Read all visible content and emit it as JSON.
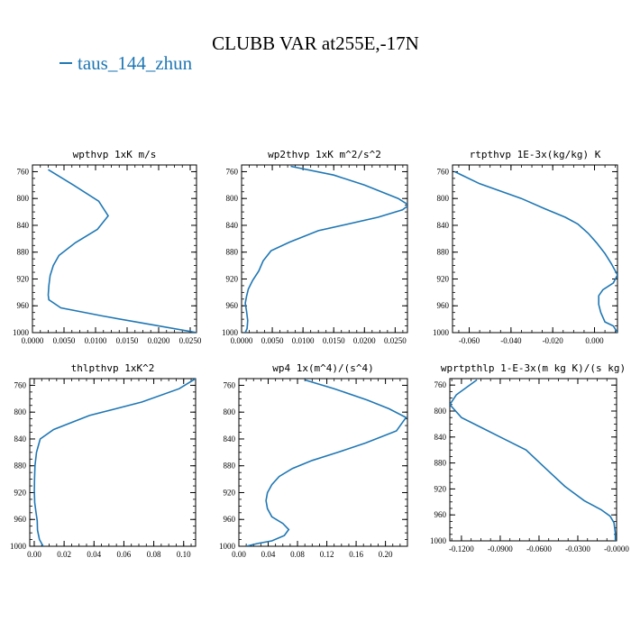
{
  "title": "CLUBB VAR at255E,-17N",
  "legend": {
    "label": "taus_144_zhun",
    "color": "#1f77b4"
  },
  "chart_data": [
    {
      "type": "line",
      "title": "wpthvp  1xK m/s",
      "xlim": [
        0,
        0.026
      ],
      "ylim": [
        1000,
        750
      ],
      "y_inverted": true,
      "xticks": [
        0,
        0.005,
        0.01,
        0.015,
        0.02,
        0.025
      ],
      "xtick_labels": [
        "0.0000",
        "0.0050",
        "0.0100",
        "0.0150",
        "0.0200",
        "0.0250"
      ],
      "yticks": [
        760,
        800,
        840,
        880,
        920,
        960,
        1000
      ],
      "series": [
        {
          "x": [
            0.0025,
            0.0065,
            0.0105,
            0.012,
            0.0103,
            0.0068,
            0.0042,
            0.0033,
            0.0028,
            0.0026,
            0.0025,
            0.0026,
            0.0045,
            0.011,
            0.0188,
            0.0261
          ],
          "y": [
            757,
            780,
            804,
            826,
            846,
            866,
            885,
            900,
            915,
            930,
            944,
            951,
            963,
            975,
            988,
            1000
          ]
        }
      ]
    },
    {
      "type": "line",
      "title": "wp2thvp  1xK m^2/s^2",
      "xlim": [
        0,
        0.027
      ],
      "ylim": [
        1000,
        750
      ],
      "y_inverted": true,
      "xticks": [
        0,
        0.005,
        0.01,
        0.015,
        0.02,
        0.025
      ],
      "xtick_labels": [
        "0.0000",
        "0.0050",
        "0.0100",
        "0.0150",
        "0.0200",
        "0.0250"
      ],
      "yticks": [
        760,
        800,
        840,
        880,
        920,
        960,
        1000
      ],
      "series": [
        {
          "x": [
            0.008,
            0.015,
            0.02,
            0.0255,
            0.0272,
            0.0262,
            0.0222,
            0.0125,
            0.0078,
            0.0048,
            0.0035,
            0.0028,
            0.0018,
            0.0011,
            0.0008,
            0.0006,
            0.0008,
            0.001,
            0.0009,
            0.0006
          ],
          "y": [
            752,
            765,
            780,
            800,
            810,
            817,
            828,
            848,
            865,
            878,
            893,
            908,
            922,
            935,
            946,
            956,
            968,
            982,
            994,
            1000
          ]
        }
      ]
    },
    {
      "type": "line",
      "title": "rtpthvp  1E-3x(kg/kg) K",
      "xlim": [
        -0.068,
        0.011
      ],
      "ylim": [
        1000,
        750
      ],
      "y_inverted": true,
      "xticks": [
        -0.06,
        -0.04,
        -0.02,
        0.0
      ],
      "xtick_labels": [
        "-0.060",
        "-0.040",
        "-0.020",
        "0.000"
      ],
      "yticks": [
        760,
        800,
        840,
        880,
        920,
        960,
        1000
      ],
      "series": [
        {
          "x": [
            -0.067,
            -0.055,
            -0.035,
            -0.024,
            -0.014,
            -0.008,
            -0.003,
            0.001,
            0.005,
            0.008,
            0.011,
            0.009,
            0.004,
            0.002,
            0.002,
            0.003,
            0.005,
            0.009,
            0.011
          ],
          "y": [
            760,
            778,
            800,
            815,
            828,
            838,
            852,
            866,
            882,
            897,
            914,
            926,
            936,
            945,
            958,
            970,
            984,
            990,
            1000
          ]
        }
      ]
    },
    {
      "type": "line",
      "title": "thlpthvp  1xK^2",
      "xlim": [
        -0.003,
        0.108
      ],
      "ylim": [
        1000,
        750
      ],
      "y_inverted": true,
      "xticks": [
        0.0,
        0.02,
        0.04,
        0.06,
        0.08,
        0.1
      ],
      "xtick_labels": [
        "0.00",
        "0.02",
        "0.04",
        "0.06",
        "0.08",
        "0.10"
      ],
      "yticks": [
        760,
        800,
        840,
        880,
        920,
        960,
        1000
      ],
      "series": [
        {
          "x": [
            0.108,
            0.097,
            0.072,
            0.037,
            0.013,
            0.004,
            0.0015,
            0.0005,
            0.0002,
            0.0001,
            0.0003,
            0.0012,
            0.002,
            0.0022,
            0.0035,
            0.006
          ],
          "y": [
            750,
            765,
            785,
            805,
            826,
            840,
            860,
            880,
            900,
            918,
            935,
            950,
            962,
            976,
            990,
            1000
          ]
        }
      ]
    },
    {
      "type": "line",
      "title": "wp4   1x(m^4)/(s^4)",
      "xlim": [
        0,
        0.23
      ],
      "ylim": [
        1000,
        750
      ],
      "y_inverted": true,
      "xticks": [
        0.0,
        0.04,
        0.08,
        0.12,
        0.16,
        0.2
      ],
      "xtick_labels": [
        "0.00",
        "0.04",
        "0.08",
        "0.12",
        "0.16",
        "0.20"
      ],
      "yticks": [
        760,
        800,
        840,
        880,
        920,
        960,
        1000
      ],
      "series": [
        {
          "x": [
            0.09,
            0.13,
            0.175,
            0.205,
            0.228,
            0.215,
            0.173,
            0.135,
            0.1,
            0.073,
            0.055,
            0.045,
            0.039,
            0.037,
            0.039,
            0.045,
            0.06,
            0.068,
            0.062,
            0.045,
            0.025,
            0.01
          ],
          "y": [
            752,
            765,
            782,
            795,
            808,
            828,
            846,
            860,
            872,
            884,
            896,
            908,
            920,
            932,
            944,
            956,
            966,
            975,
            984,
            992,
            996,
            1000
          ]
        }
      ]
    },
    {
      "type": "line",
      "title": "wprtpthlp   1-E-3x(m kg K)/(s kg)",
      "xlim": [
        -0.129,
        0.0
      ],
      "ylim": [
        1000,
        750
      ],
      "y_inverted": true,
      "xticks": [
        -0.12,
        -0.09,
        -0.06,
        -0.03,
        0.0
      ],
      "xtick_labels": [
        "-0.1200",
        "-0.0900",
        "-0.0600",
        "-0.0300",
        "-0.0000"
      ],
      "yticks": [
        760,
        800,
        840,
        880,
        920,
        960,
        1000
      ],
      "series": [
        {
          "x": [
            -0.108,
            -0.115,
            -0.124,
            -0.129,
            -0.12,
            -0.105,
            -0.09,
            -0.07,
            -0.055,
            -0.04,
            -0.025,
            -0.012,
            -0.005,
            -0.002,
            -0.001,
            -0.001
          ],
          "y": [
            752,
            762,
            775,
            790,
            810,
            825,
            840,
            860,
            888,
            916,
            938,
            952,
            962,
            972,
            988,
            1000
          ]
        }
      ]
    }
  ]
}
